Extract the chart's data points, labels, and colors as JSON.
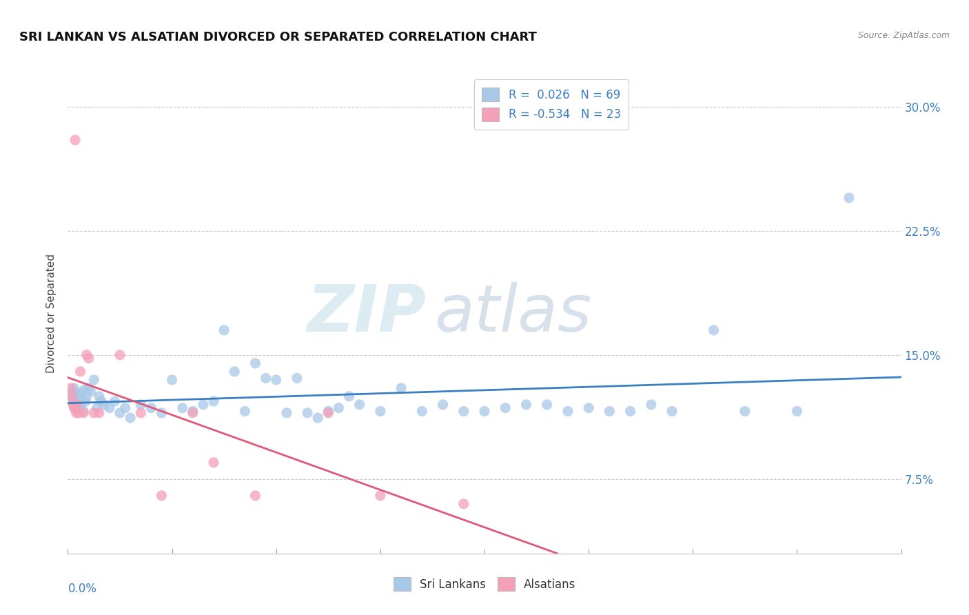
{
  "title": "SRI LANKAN VS ALSATIAN DIVORCED OR SEPARATED CORRELATION CHART",
  "source": "Source: ZipAtlas.com",
  "ylabel": "Divorced or Separated",
  "xmin": 0.0,
  "xmax": 0.8,
  "ymin": 0.03,
  "ymax": 0.32,
  "sri_lankan_R": 0.026,
  "sri_lankan_N": 69,
  "alsatian_R": -0.534,
  "alsatian_N": 23,
  "blue_color": "#a8c8e8",
  "pink_color": "#f4a0b8",
  "blue_line_color": "#3a7fc1",
  "pink_line_color": "#e05878",
  "legend_label_1": "Sri Lankans",
  "legend_label_2": "Alsatians",
  "watermark_zip": "ZIP",
  "watermark_atlas": "atlas",
  "background_color": "#ffffff",
  "grid_color": "#cccccc",
  "ytick_positions": [
    0.075,
    0.15,
    0.225,
    0.3
  ],
  "ytick_labels": [
    "7.5%",
    "15.0%",
    "22.5%",
    "30.0%"
  ],
  "sri_lankans_x": [
    0.003,
    0.004,
    0.005,
    0.006,
    0.007,
    0.008,
    0.009,
    0.01,
    0.011,
    0.012,
    0.013,
    0.014,
    0.015,
    0.016,
    0.017,
    0.018,
    0.02,
    0.022,
    0.025,
    0.028,
    0.03,
    0.032,
    0.035,
    0.04,
    0.045,
    0.05,
    0.055,
    0.06,
    0.07,
    0.08,
    0.09,
    0.1,
    0.11,
    0.12,
    0.13,
    0.14,
    0.15,
    0.16,
    0.17,
    0.18,
    0.19,
    0.2,
    0.21,
    0.22,
    0.23,
    0.24,
    0.25,
    0.26,
    0.27,
    0.28,
    0.3,
    0.32,
    0.34,
    0.36,
    0.38,
    0.4,
    0.42,
    0.44,
    0.46,
    0.48,
    0.5,
    0.52,
    0.54,
    0.56,
    0.58,
    0.62,
    0.65,
    0.7,
    0.75
  ],
  "sri_lankans_y": [
    0.125,
    0.128,
    0.122,
    0.13,
    0.118,
    0.126,
    0.12,
    0.124,
    0.119,
    0.127,
    0.121,
    0.123,
    0.116,
    0.129,
    0.122,
    0.125,
    0.13,
    0.128,
    0.135,
    0.118,
    0.125,
    0.122,
    0.12,
    0.118,
    0.122,
    0.115,
    0.118,
    0.112,
    0.12,
    0.118,
    0.115,
    0.135,
    0.118,
    0.116,
    0.12,
    0.122,
    0.165,
    0.14,
    0.116,
    0.145,
    0.136,
    0.135,
    0.115,
    0.136,
    0.115,
    0.112,
    0.116,
    0.118,
    0.125,
    0.12,
    0.116,
    0.13,
    0.116,
    0.12,
    0.116,
    0.116,
    0.118,
    0.12,
    0.12,
    0.116,
    0.118,
    0.116,
    0.116,
    0.12,
    0.116,
    0.165,
    0.116,
    0.116,
    0.245
  ],
  "alsatians_x": [
    0.003,
    0.004,
    0.005,
    0.006,
    0.007,
    0.008,
    0.009,
    0.01,
    0.012,
    0.015,
    0.018,
    0.02,
    0.025,
    0.03,
    0.05,
    0.07,
    0.09,
    0.12,
    0.14,
    0.18,
    0.25,
    0.3,
    0.38
  ],
  "alsatians_y": [
    0.13,
    0.125,
    0.12,
    0.118,
    0.28,
    0.115,
    0.12,
    0.115,
    0.14,
    0.115,
    0.15,
    0.148,
    0.115,
    0.115,
    0.15,
    0.115,
    0.065,
    0.115,
    0.085,
    0.065,
    0.115,
    0.065,
    0.06
  ]
}
